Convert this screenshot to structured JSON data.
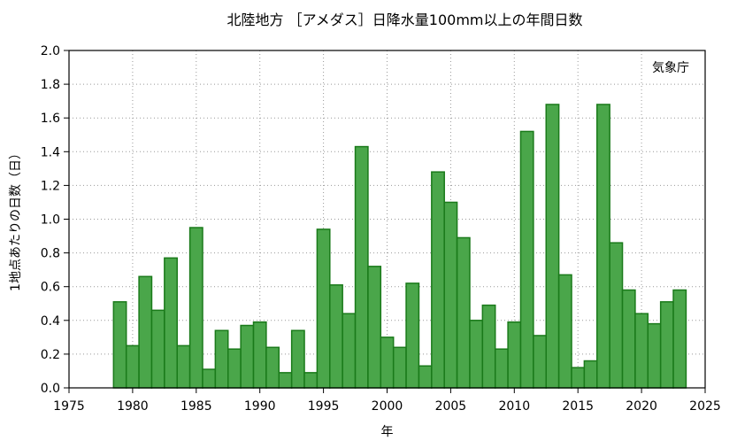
{
  "chart_data": {
    "type": "bar",
    "title": "北陸地方 ［アメダス］日降水量100mm以上の年間日数",
    "xlabel": "年",
    "ylabel": "1地点あたりの日数（日）",
    "annotation": "気象庁",
    "xlim": [
      1975,
      2025
    ],
    "ylim": [
      0,
      2.0
    ],
    "xticks": [
      1975,
      1980,
      1985,
      1990,
      1995,
      2000,
      2005,
      2010,
      2015,
      2020,
      2025
    ],
    "yticks": [
      "0.0",
      "0.2",
      "0.4",
      "0.6",
      "0.8",
      "1.0",
      "1.2",
      "1.4",
      "1.6",
      "1.8",
      "2.0"
    ],
    "grid": true,
    "bar_color": "#4aa64a",
    "bar_edge_color": "#1a7a1a",
    "x": [
      1979,
      1980,
      1981,
      1982,
      1983,
      1984,
      1985,
      1986,
      1987,
      1988,
      1989,
      1990,
      1991,
      1992,
      1993,
      1994,
      1995,
      1996,
      1997,
      1998,
      1999,
      2000,
      2001,
      2002,
      2003,
      2004,
      2005,
      2006,
      2007,
      2008,
      2009,
      2010,
      2011,
      2012,
      2013,
      2014,
      2015,
      2016,
      2017,
      2018,
      2019,
      2020,
      2021,
      2022,
      2023
    ],
    "values": [
      0.51,
      0.25,
      0.66,
      0.46,
      0.77,
      0.25,
      0.95,
      0.11,
      0.34,
      0.23,
      0.37,
      0.39,
      0.24,
      0.09,
      0.34,
      0.09,
      0.94,
      0.61,
      0.44,
      1.43,
      0.72,
      0.3,
      0.24,
      0.62,
      0.13,
      1.28,
      1.1,
      0.89,
      0.4,
      0.49,
      0.23,
      0.39,
      1.52,
      0.31,
      1.68,
      0.67,
      0.12,
      0.16,
      1.68,
      0.86,
      0.58,
      0.44,
      0.38,
      0.51,
      0.58
    ]
  }
}
